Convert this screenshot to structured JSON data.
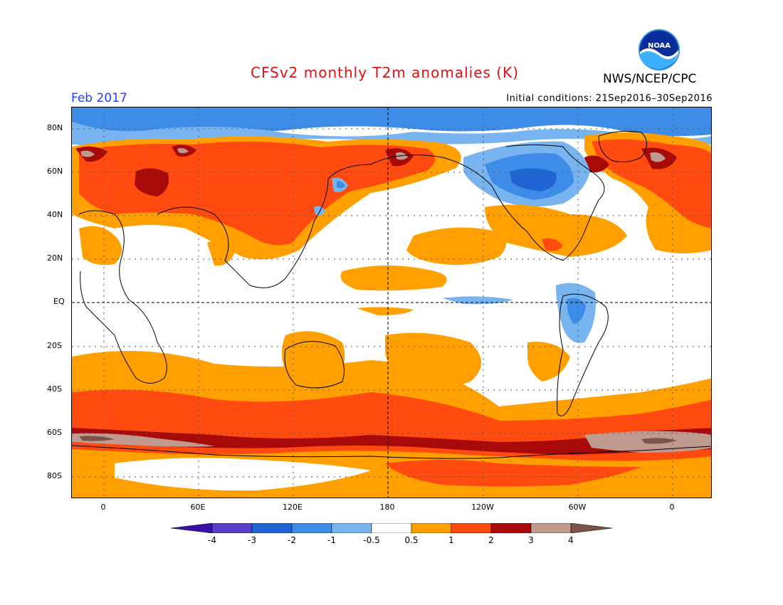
{
  "title": "CFSv2 monthly T2m anomalies (K)",
  "agency": "NWS/NCEP/CPC",
  "logo_text": "NOAA",
  "month": "Feb 2017",
  "initial_conditions": "Initial conditions: 21Sep2016–30Sep2016",
  "lat_labels": [
    "80N",
    "60N",
    "40N",
    "20N",
    "EQ",
    "20S",
    "40S",
    "60S",
    "80S"
  ],
  "lon_labels": [
    "0",
    "60E",
    "120E",
    "180",
    "120W",
    "60W",
    "0"
  ],
  "colorbar": {
    "labels": [
      "-4",
      "-3",
      "-2",
      "-1",
      "-0.5",
      "0.5",
      "1",
      "2",
      "3",
      "4"
    ],
    "colors": [
      "#3a10a8",
      "#5a3ec8",
      "#1f64d2",
      "#3c8ce8",
      "#78b4f0",
      "#ffffff",
      "#ffa000",
      "#ff4a10",
      "#a80a0a",
      "#c09a8e",
      "#7a5446"
    ]
  },
  "palette": {
    "warm_05": "#ffa000",
    "warm_1": "#ff4a10",
    "warm_2": "#a80a0a",
    "warm_3": "#c09a8e",
    "warm_4": "#7a5446",
    "cool_05": "#78b4f0",
    "cool_1": "#3c8ce8",
    "cool_2": "#1f64d2",
    "title_color": "#e01010",
    "month_color": "#2040ff"
  }
}
